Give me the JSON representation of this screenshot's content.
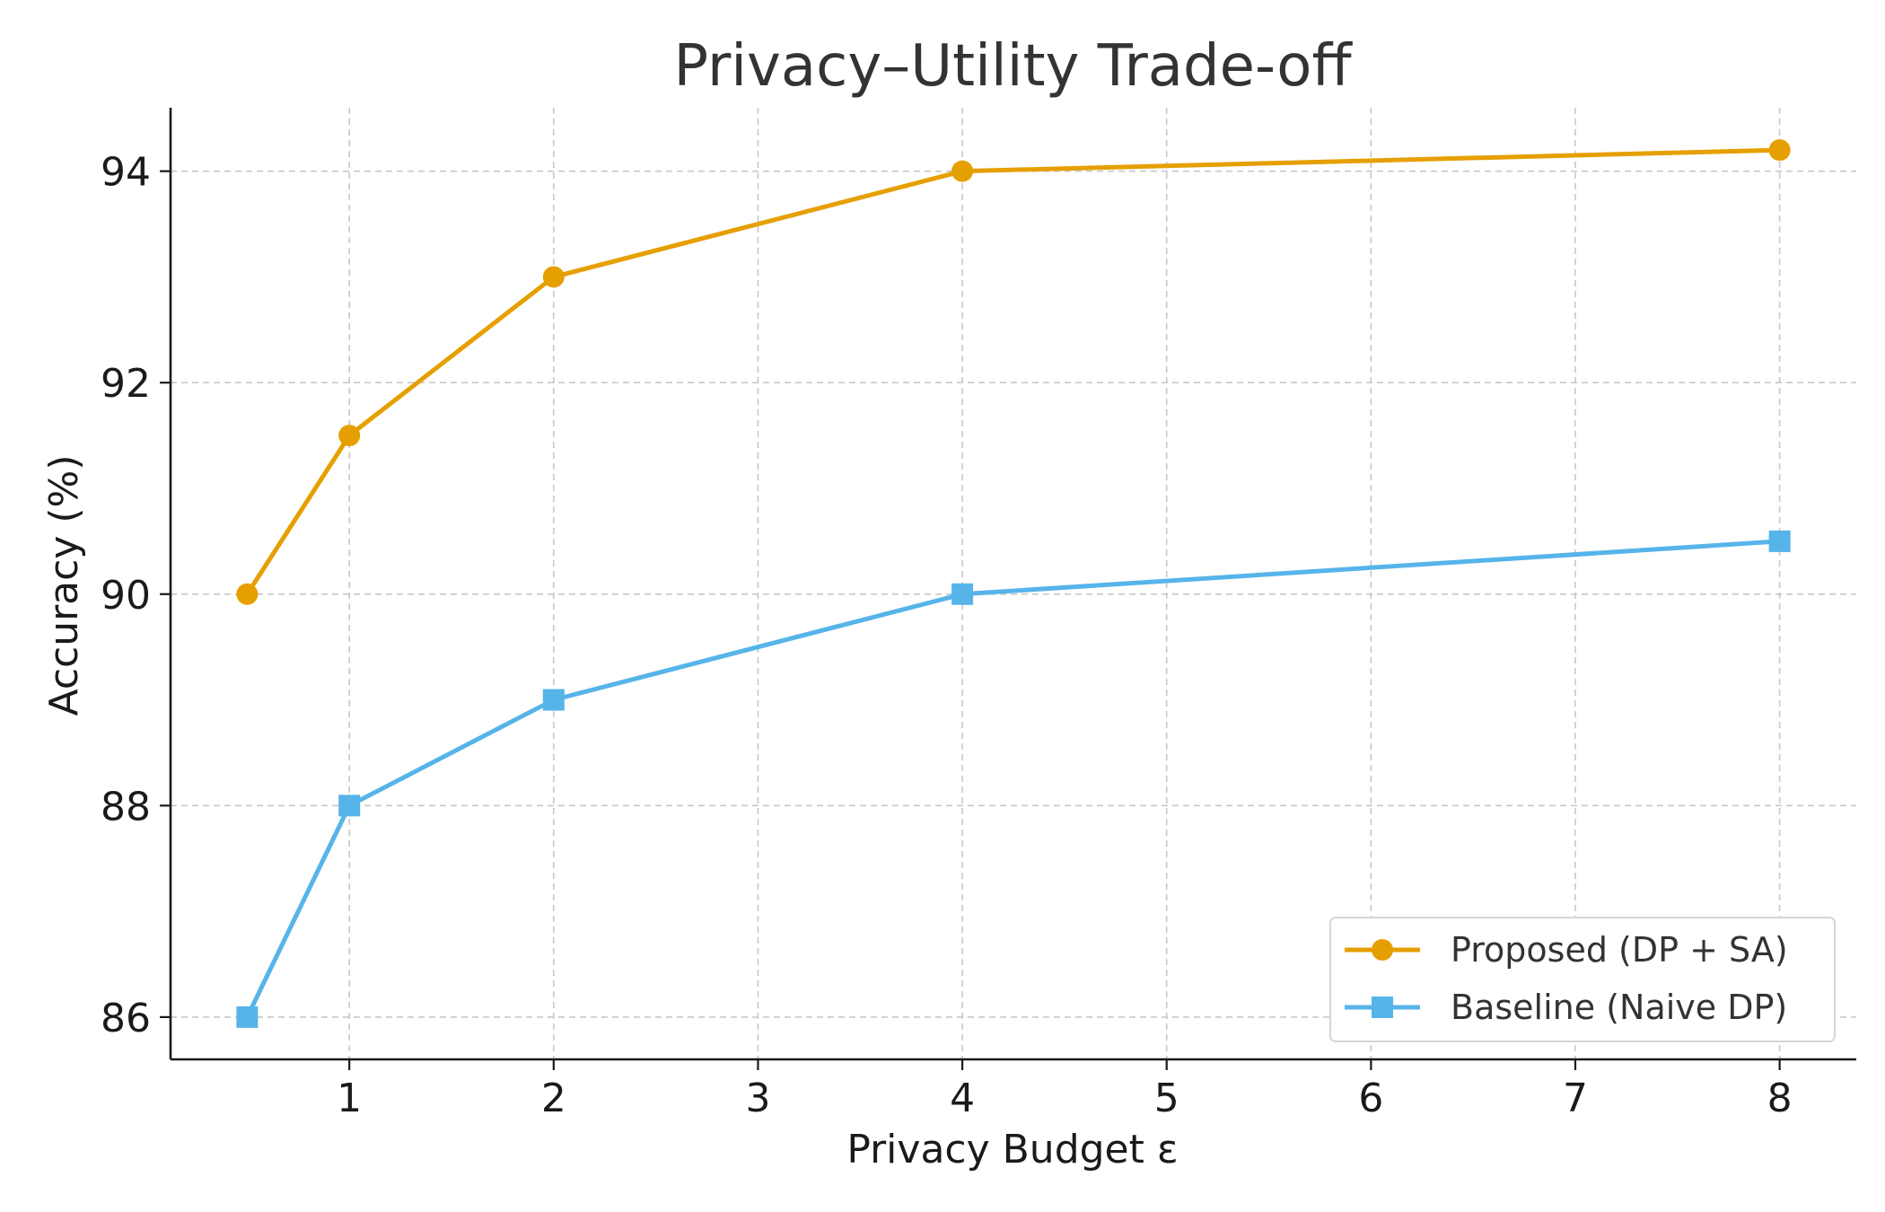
{
  "chart_data": {
    "type": "line",
    "title": "Privacy–Utility Trade-off",
    "xlabel": "Privacy Budget ε",
    "ylabel": "Accuracy (%)",
    "x": [
      0.5,
      1,
      2,
      4,
      8
    ],
    "xlim": [
      0.125,
      8.375
    ],
    "ylim": [
      85.6,
      94.6
    ],
    "xticks": [
      1,
      2,
      3,
      4,
      5,
      6,
      7,
      8
    ],
    "yticks": [
      86,
      88,
      90,
      92,
      94
    ],
    "grid": true,
    "legend_position": "lower-right",
    "series": [
      {
        "name": "Proposed (DP + SA)",
        "values": [
          90.0,
          91.5,
          93.0,
          94.0,
          94.2
        ],
        "color": "#E69F00",
        "marker": "circle"
      },
      {
        "name": "Baseline (Naive DP)",
        "values": [
          86.0,
          88.0,
          89.0,
          90.0,
          90.5
        ],
        "color": "#56B4E9",
        "marker": "square"
      }
    ]
  }
}
